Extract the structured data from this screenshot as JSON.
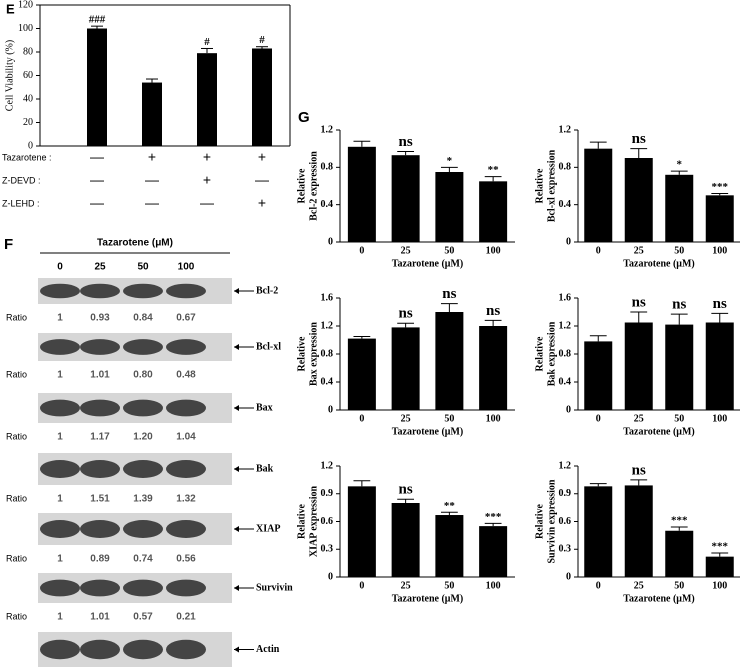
{
  "panel_labels": [
    "E",
    "F",
    "G"
  ],
  "chart_data": [
    {
      "type": "bar",
      "y_label": [
        "Cell Viability (%)"
      ],
      "values": [
        100,
        54,
        79,
        83
      ],
      "errors": [
        2,
        3,
        4,
        1.5
      ],
      "significance": [
        "###",
        null,
        "#",
        "#"
      ],
      "ylim": [
        0,
        120
      ],
      "yticks": [
        0,
        20,
        40,
        60,
        80,
        100,
        120
      ],
      "color": "#000000",
      "treatments": [
        {
          "name": "Tazarotene :",
          "marks": [
            "—",
            "+",
            "+",
            "+"
          ]
        },
        {
          "name": "Z-DEVD :",
          "marks": [
            "—",
            "—",
            "+",
            "—"
          ]
        },
        {
          "name": "Z-LEHD :",
          "marks": [
            "—",
            "—",
            "—",
            "+"
          ]
        }
      ]
    },
    {
      "type": "bar",
      "y_label": [
        "Relative",
        "Bcl-2 expression"
      ],
      "x_label": "Tazarotene (μM)",
      "categories": [
        "0",
        "25",
        "50",
        "100"
      ],
      "values": [
        1.02,
        0.93,
        0.75,
        0.65
      ],
      "errors": [
        0.06,
        0.04,
        0.05,
        0.05
      ],
      "significance": [
        null,
        "ns",
        "*",
        "**"
      ],
      "ylim": [
        0,
        1.2
      ],
      "yticks": [
        0,
        0.4,
        0.8,
        1.2
      ],
      "color": "#000000"
    },
    {
      "type": "bar",
      "y_label": [
        "Relative",
        "Bcl-xl expression"
      ],
      "x_label": "Tazarotene (μM)",
      "categories": [
        "0",
        "25",
        "50",
        "100"
      ],
      "values": [
        1.0,
        0.9,
        0.72,
        0.5
      ],
      "errors": [
        0.07,
        0.1,
        0.04,
        0.02
      ],
      "significance": [
        null,
        "ns",
        "*",
        "***"
      ],
      "ylim": [
        0,
        1.2
      ],
      "yticks": [
        0,
        0.4,
        0.8,
        1.2
      ],
      "color": "#000000"
    },
    {
      "type": "bar",
      "y_label": [
        "Relative",
        "Bax expression"
      ],
      "x_label": "Tazarotene (μM)",
      "categories": [
        "0",
        "25",
        "50",
        "100"
      ],
      "values": [
        1.02,
        1.18,
        1.4,
        1.2
      ],
      "errors": [
        0.03,
        0.06,
        0.12,
        0.08
      ],
      "significance": [
        null,
        "ns",
        "ns",
        "ns"
      ],
      "ylim": [
        0,
        1.6
      ],
      "yticks": [
        0,
        0.4,
        0.8,
        1.2,
        1.6
      ],
      "color": "#000000"
    },
    {
      "type": "bar",
      "y_label": [
        "Relative",
        "Bak expression"
      ],
      "x_label": "Tazarotene (μM)",
      "categories": [
        "0",
        "25",
        "50",
        "100"
      ],
      "values": [
        0.98,
        1.25,
        1.22,
        1.25
      ],
      "errors": [
        0.08,
        0.15,
        0.15,
        0.13
      ],
      "significance": [
        null,
        "ns",
        "ns",
        "ns"
      ],
      "ylim": [
        0,
        1.6
      ],
      "yticks": [
        0,
        0.4,
        0.8,
        1.2,
        1.6
      ],
      "color": "#000000"
    },
    {
      "type": "bar",
      "y_label": [
        "Relative",
        "XIAP expression"
      ],
      "x_label": "Tazarotene (μM)",
      "categories": [
        "0",
        "25",
        "50",
        "100"
      ],
      "values": [
        0.98,
        0.8,
        0.67,
        0.55
      ],
      "errors": [
        0.06,
        0.04,
        0.03,
        0.03
      ],
      "significance": [
        null,
        "ns",
        "**",
        "***"
      ],
      "ylim": [
        0,
        1.2
      ],
      "yticks": [
        0,
        0.3,
        0.6,
        0.9,
        1.2
      ],
      "color": "#000000"
    },
    {
      "type": "bar",
      "y_label": [
        "Relative",
        "Survivin expression"
      ],
      "x_label": "Tazarotene (μM)",
      "categories": [
        "0",
        "25",
        "50",
        "100"
      ],
      "values": [
        0.98,
        0.99,
        0.5,
        0.22
      ],
      "errors": [
        0.03,
        0.06,
        0.04,
        0.04
      ],
      "significance": [
        null,
        "ns",
        "***",
        "***"
      ],
      "ylim": [
        0,
        1.2
      ],
      "yticks": [
        0,
        0.3,
        0.6,
        0.9,
        1.2
      ],
      "color": "#000000"
    }
  ],
  "blot": {
    "header": "Tazarotene (μM)",
    "lanes": [
      "0",
      "25",
      "50",
      "100"
    ],
    "ratio_label": "Ratio",
    "rows": [
      {
        "protein": "Bcl-2",
        "ratios": [
          "1",
          "0.93",
          "0.84",
          "0.67"
        ]
      },
      {
        "protein": "Bcl-xl",
        "ratios": [
          "1",
          "1.01",
          "0.80",
          "0.48"
        ]
      },
      {
        "protein": "Bax",
        "ratios": [
          "1",
          "1.17",
          "1.20",
          "1.04"
        ]
      },
      {
        "protein": "Bak",
        "ratios": [
          "1",
          "1.51",
          "1.39",
          "1.32"
        ]
      },
      {
        "protein": "XIAP",
        "ratios": [
          "1",
          "0.89",
          "0.74",
          "0.56"
        ]
      },
      {
        "protein": "Survivin",
        "ratios": [
          "1",
          "1.01",
          "0.57",
          "0.21"
        ]
      },
      {
        "protein": "Actin",
        "ratios": null
      }
    ]
  }
}
